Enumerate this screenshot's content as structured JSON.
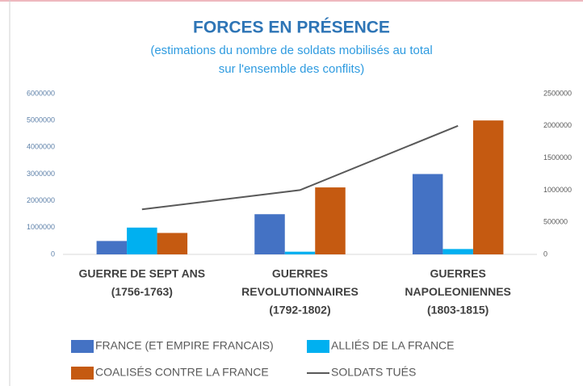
{
  "chart_data": {
    "type": "bar",
    "title": "FORCES EN PRÉSENCE",
    "subtitle": [
      "(estimations du nombre de soldats mobilisés au total",
      "sur l'ensemble des conflits)"
    ],
    "categories": [
      [
        "GUERRE DE SEPT ANS",
        "(1756-1763)"
      ],
      [
        "GUERRES",
        "REVOLUTIONNAIRES",
        "(1792-1802)"
      ],
      [
        "GUERRES",
        "NAPOLEONIENNES",
        "(1803-1815)"
      ]
    ],
    "series": [
      {
        "name": "FRANCE (ET EMPIRE FRANCAIS)",
        "color": "#4472c4",
        "type": "bar",
        "values": [
          500000,
          1500000,
          3000000
        ]
      },
      {
        "name": "ALLIÉS DE LA FRANCE",
        "color": "#00b0f0",
        "type": "bar",
        "values": [
          1000000,
          100000,
          200000
        ]
      },
      {
        "name": "COALISÉS CONTRE LA FRANCE",
        "color": "#c55a11",
        "type": "bar",
        "values": [
          800000,
          2500000,
          5000000
        ]
      },
      {
        "name": "SOLDATS TUÉS",
        "color": "#595959",
        "type": "line",
        "axis": "y2",
        "values": [
          700000,
          1000000,
          2000000
        ]
      }
    ],
    "ylim": [
      0,
      6000000
    ],
    "yticks": [
      0,
      1000000,
      2000000,
      3000000,
      4000000,
      5000000,
      6000000
    ],
    "y2lim": [
      0,
      2500000
    ],
    "y2ticks": [
      0,
      500000,
      1000000,
      1500000,
      2000000,
      2500000
    ]
  }
}
